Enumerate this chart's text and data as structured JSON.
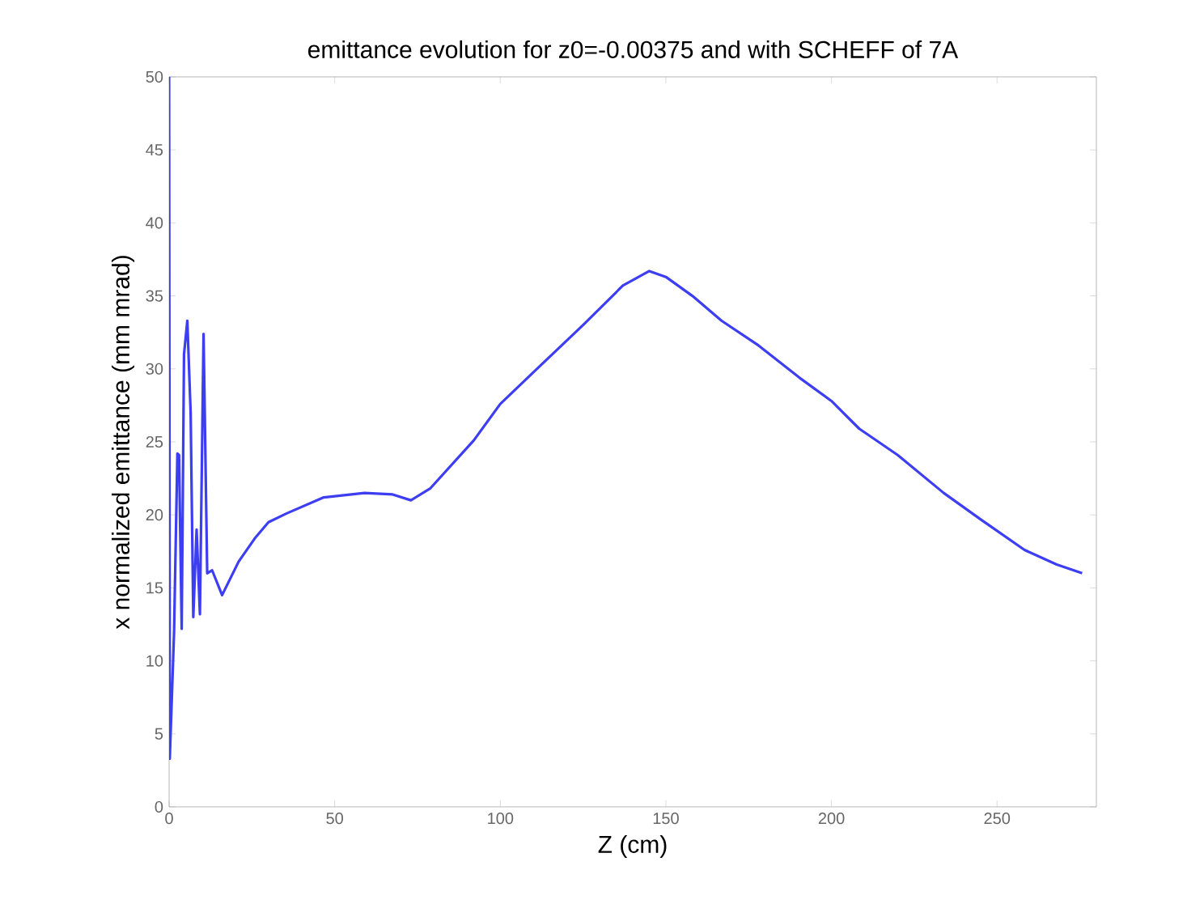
{
  "chart_data": {
    "type": "line",
    "title": "emittance evolution for z0=-0.00375 and with SCHEFF of 7A",
    "xlabel": "Z (cm)",
    "ylabel": "x normalized emittance (mm mrad)",
    "xlim": [
      0,
      280
    ],
    "ylim": [
      0,
      50
    ],
    "xticks": [
      0,
      50,
      100,
      150,
      200,
      250
    ],
    "yticks": [
      0,
      5,
      10,
      15,
      20,
      25,
      30,
      35,
      40,
      45,
      50
    ],
    "grid": false,
    "line_style": "solid",
    "marker": "none",
    "series": [
      {
        "color": "#3d3df2",
        "x": [
          0,
          0.2,
          1.5,
          2.5,
          3,
          3.8,
          4.5,
          5.5,
          6.5,
          7.3,
          8.3,
          9.3,
          10.4,
          11.5,
          13,
          16,
          21,
          25.9,
          30,
          35.5,
          46.7,
          59,
          67.5,
          73,
          78.8,
          92,
          100,
          110.6,
          125,
          137,
          145,
          150,
          158,
          166.8,
          178,
          190.3,
          200,
          208.4,
          220,
          233.9,
          245,
          258.3,
          268,
          275.7
        ],
        "values": [
          50,
          3.3,
          12,
          24.2,
          24.1,
          12.2,
          31,
          33.3,
          27,
          13,
          19,
          13.2,
          32.4,
          16,
          16.2,
          14.5,
          16.8,
          18.4,
          19.5,
          20.1,
          21.2,
          21.5,
          21.4,
          21.0,
          21.8,
          25.1,
          27.6,
          29.9,
          33,
          35.7,
          36.7,
          36.3,
          35,
          33.3,
          31.6,
          29.4,
          27.8,
          25.9,
          24.1,
          21.5,
          19.7,
          17.6,
          16.6,
          16.0
        ]
      }
    ]
  }
}
